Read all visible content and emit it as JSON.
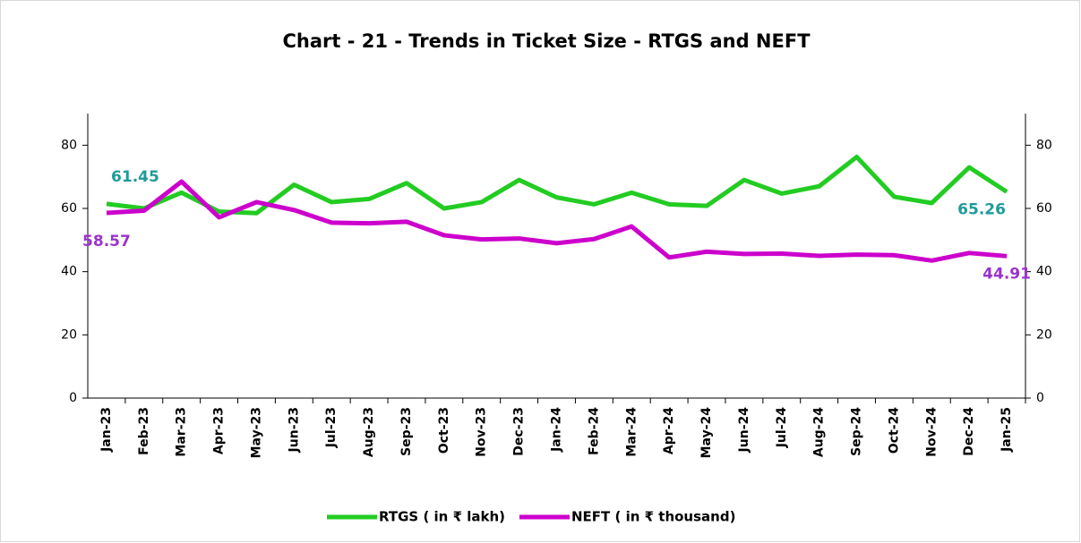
{
  "chart_data": {
    "type": "line",
    "title": "Chart - 21 - Trends in Ticket Size - RTGS and NEFT",
    "categories": [
      "Jan-23",
      "Feb-23",
      "Mar-23",
      "Apr-23",
      "May-23",
      "Jun-23",
      "Jul-23",
      "Aug-23",
      "Sep-23",
      "Oct-23",
      "Nov-23",
      "Dec-23",
      "Jan-24",
      "Feb-24",
      "Mar-24",
      "Apr-24",
      "May-24",
      "Jun-24",
      "Jul-24",
      "Aug-24",
      "Sep-24",
      "Oct-24",
      "Nov-24",
      "Dec-24",
      "Jan-25"
    ],
    "series": [
      {
        "name": "RTGS ( in ₹ lakh)",
        "color": "#22cc22",
        "label_color": "#1f9a9a",
        "values": [
          61.45,
          60,
          65,
          59,
          58.5,
          67.5,
          62,
          63,
          68,
          60,
          62,
          69,
          63.5,
          61.3,
          65,
          61.3,
          60.8,
          69,
          64.7,
          67,
          76.3,
          63.7,
          61.7,
          73,
          65.26
        ],
        "value_labels": [
          "61.45",
          null,
          null,
          null,
          null,
          null,
          null,
          null,
          null,
          null,
          null,
          null,
          null,
          null,
          null,
          null,
          null,
          null,
          null,
          null,
          null,
          null,
          null,
          null,
          "65.26"
        ]
      },
      {
        "name": "NEFT ( in ₹ thousand)",
        "color": "#cc00cc",
        "label_color": "#9933cc",
        "axis": "y2",
        "values": [
          58.57,
          59.3,
          68.5,
          57.2,
          62,
          59.5,
          55.5,
          55.3,
          55.8,
          51.5,
          50.2,
          50.5,
          49,
          50.3,
          54.3,
          44.5,
          46.3,
          45.6,
          45.7,
          45,
          45.4,
          45.2,
          43.5,
          45.9,
          44.91
        ],
        "value_labels": [
          "58.57",
          null,
          null,
          null,
          null,
          null,
          null,
          null,
          null,
          null,
          null,
          null,
          null,
          null,
          null,
          null,
          null,
          null,
          null,
          null,
          null,
          null,
          null,
          null,
          "44.91"
        ]
      }
    ],
    "ylim": [
      0,
      90
    ],
    "yticks": [
      0,
      20,
      40,
      60,
      80
    ],
    "y2lim": [
      0,
      90
    ],
    "y2ticks": [
      0,
      20,
      40,
      60,
      80
    ],
    "grid": false,
    "legend": "bottom"
  }
}
